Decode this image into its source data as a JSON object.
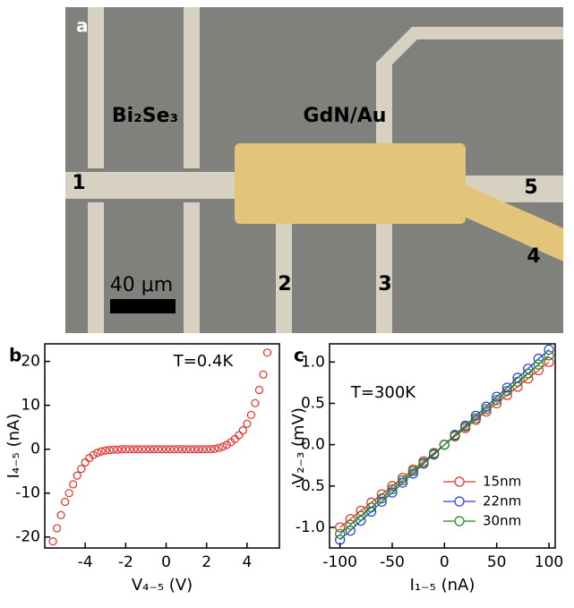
{
  "micrograph": {
    "panel_label": "a",
    "material_labels": [
      "Bi₂Se₃",
      "GdN/Au"
    ],
    "contacts": [
      "1",
      "2",
      "3",
      "4",
      "5"
    ],
    "scale_bar": "40 μm"
  },
  "chart_data": [
    {
      "type": "scatter",
      "panel_label": "b",
      "annotation": "T=0.4K",
      "x_label": "V₄₋₅ (V)",
      "y_label": "I₄₋₅ (nA)",
      "color": "#e8302a",
      "x": [
        -5.6,
        -5.4,
        -5.2,
        -5.0,
        -4.8,
        -4.6,
        -4.4,
        -4.2,
        -4.0,
        -3.8,
        -3.6,
        -3.4,
        -3.2,
        -3.0,
        -2.8,
        -2.6,
        -2.4,
        -2.2,
        -2.0,
        -1.8,
        -1.6,
        -1.4,
        -1.2,
        -1.0,
        -0.8,
        -0.6,
        -0.4,
        -0.2,
        0,
        0.2,
        0.4,
        0.6,
        0.8,
        1.0,
        1.2,
        1.4,
        1.6,
        1.8,
        2.0,
        2.2,
        2.4,
        2.6,
        2.8,
        3.0,
        3.2,
        3.4,
        3.6,
        3.8,
        4.0,
        4.2,
        4.4,
        4.6,
        4.8,
        5.0
      ],
      "values": [
        -21,
        -18,
        -15,
        -12,
        -10,
        -8,
        -6,
        -4.5,
        -3,
        -2,
        -1.3,
        -0.8,
        -0.5,
        -0.3,
        -0.2,
        -0.1,
        -0.1,
        0,
        0,
        0,
        0,
        0,
        0,
        0,
        0,
        0,
        0,
        0,
        0,
        0,
        0,
        0,
        0,
        0,
        0,
        0,
        0,
        0,
        0,
        0,
        0.1,
        0.3,
        0.6,
        1,
        1.6,
        2.3,
        3.2,
        4.3,
        5.8,
        7.8,
        10.5,
        13.5,
        17,
        22
      ],
      "xlim": [
        -6,
        5.6
      ],
      "xticks": [
        -4,
        -2,
        0,
        2,
        4
      ],
      "ylim": [
        -22.5,
        24
      ],
      "yticks": [
        -20,
        -10,
        0,
        10,
        20
      ],
      "grid": false
    },
    {
      "type": "line",
      "panel_label": "c",
      "annotation": "T=300K",
      "x_label": "I₁₋₅ (nA)",
      "y_label": "V₂₋₃ (mV)",
      "legend": "lower-right",
      "x": [
        -100,
        -90,
        -80,
        -70,
        -60,
        -50,
        -40,
        -30,
        -20,
        -10,
        0,
        10,
        20,
        30,
        40,
        50,
        60,
        70,
        80,
        90,
        100
      ],
      "series": [
        {
          "name": "15nm",
          "color": "#e8302a",
          "values": [
            -1.0,
            -0.9,
            -0.8,
            -0.7,
            -0.6,
            -0.5,
            -0.4,
            -0.3,
            -0.2,
            -0.1,
            0,
            0.1,
            0.2,
            0.3,
            0.4,
            0.5,
            0.6,
            0.7,
            0.8,
            0.9,
            1.0
          ]
        },
        {
          "name": "22nm",
          "color": "#2a3ae0",
          "values": [
            -1.15,
            -1.04,
            -0.92,
            -0.81,
            -0.69,
            -0.58,
            -0.46,
            -0.35,
            -0.23,
            -0.12,
            0,
            0.12,
            0.23,
            0.35,
            0.46,
            0.58,
            0.69,
            0.81,
            0.92,
            1.04,
            1.15
          ]
        },
        {
          "name": "30nm",
          "color": "#1e8a1e",
          "values": [
            -1.08,
            -0.97,
            -0.86,
            -0.76,
            -0.65,
            -0.54,
            -0.43,
            -0.32,
            -0.22,
            -0.11,
            0,
            0.11,
            0.22,
            0.32,
            0.43,
            0.54,
            0.65,
            0.76,
            0.86,
            0.97,
            1.08
          ]
        }
      ],
      "xlim": [
        -110,
        106
      ],
      "xticks": [
        -100,
        -50,
        0,
        50,
        100
      ],
      "ylim": [
        -1.25,
        1.22
      ],
      "yticks": [
        {
          "value": -1.0,
          "label": "-1.0"
        },
        -0.5,
        {
          "value": 0,
          "label": "0.0"
        },
        0.5,
        {
          "value": 1.0,
          "label": "1.0"
        }
      ],
      "grid": false
    }
  ]
}
